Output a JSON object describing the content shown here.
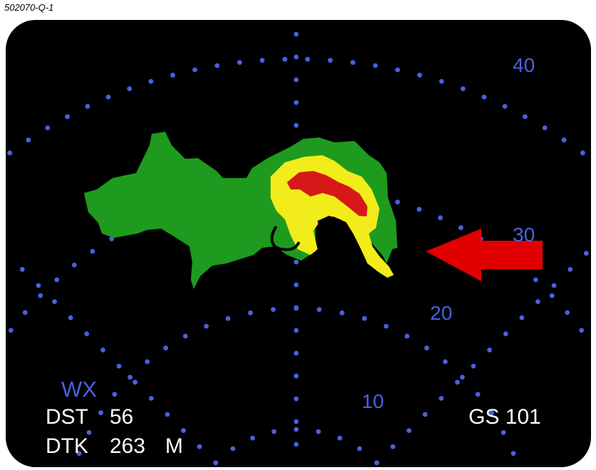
{
  "question_id": "502070-Q-1",
  "display": {
    "mode_label": "WX",
    "range_labels": [
      "10",
      "20",
      "30",
      "40"
    ],
    "dst_label": "DST",
    "dst_value": "56",
    "dtk_label": "DTK",
    "dtk_value": "263",
    "dtk_unit": "M",
    "gs_label": "GS 101"
  },
  "colors": {
    "background": "#000000",
    "range_dots": "#4a60e0",
    "precip_light": "#1e9a1e",
    "precip_moderate": "#f2ec1a",
    "precip_heavy": "#d61818",
    "arrow": "#e00000",
    "text": "#ffffff"
  },
  "icons": [
    "weather-cell",
    "red-arrow-icon"
  ]
}
